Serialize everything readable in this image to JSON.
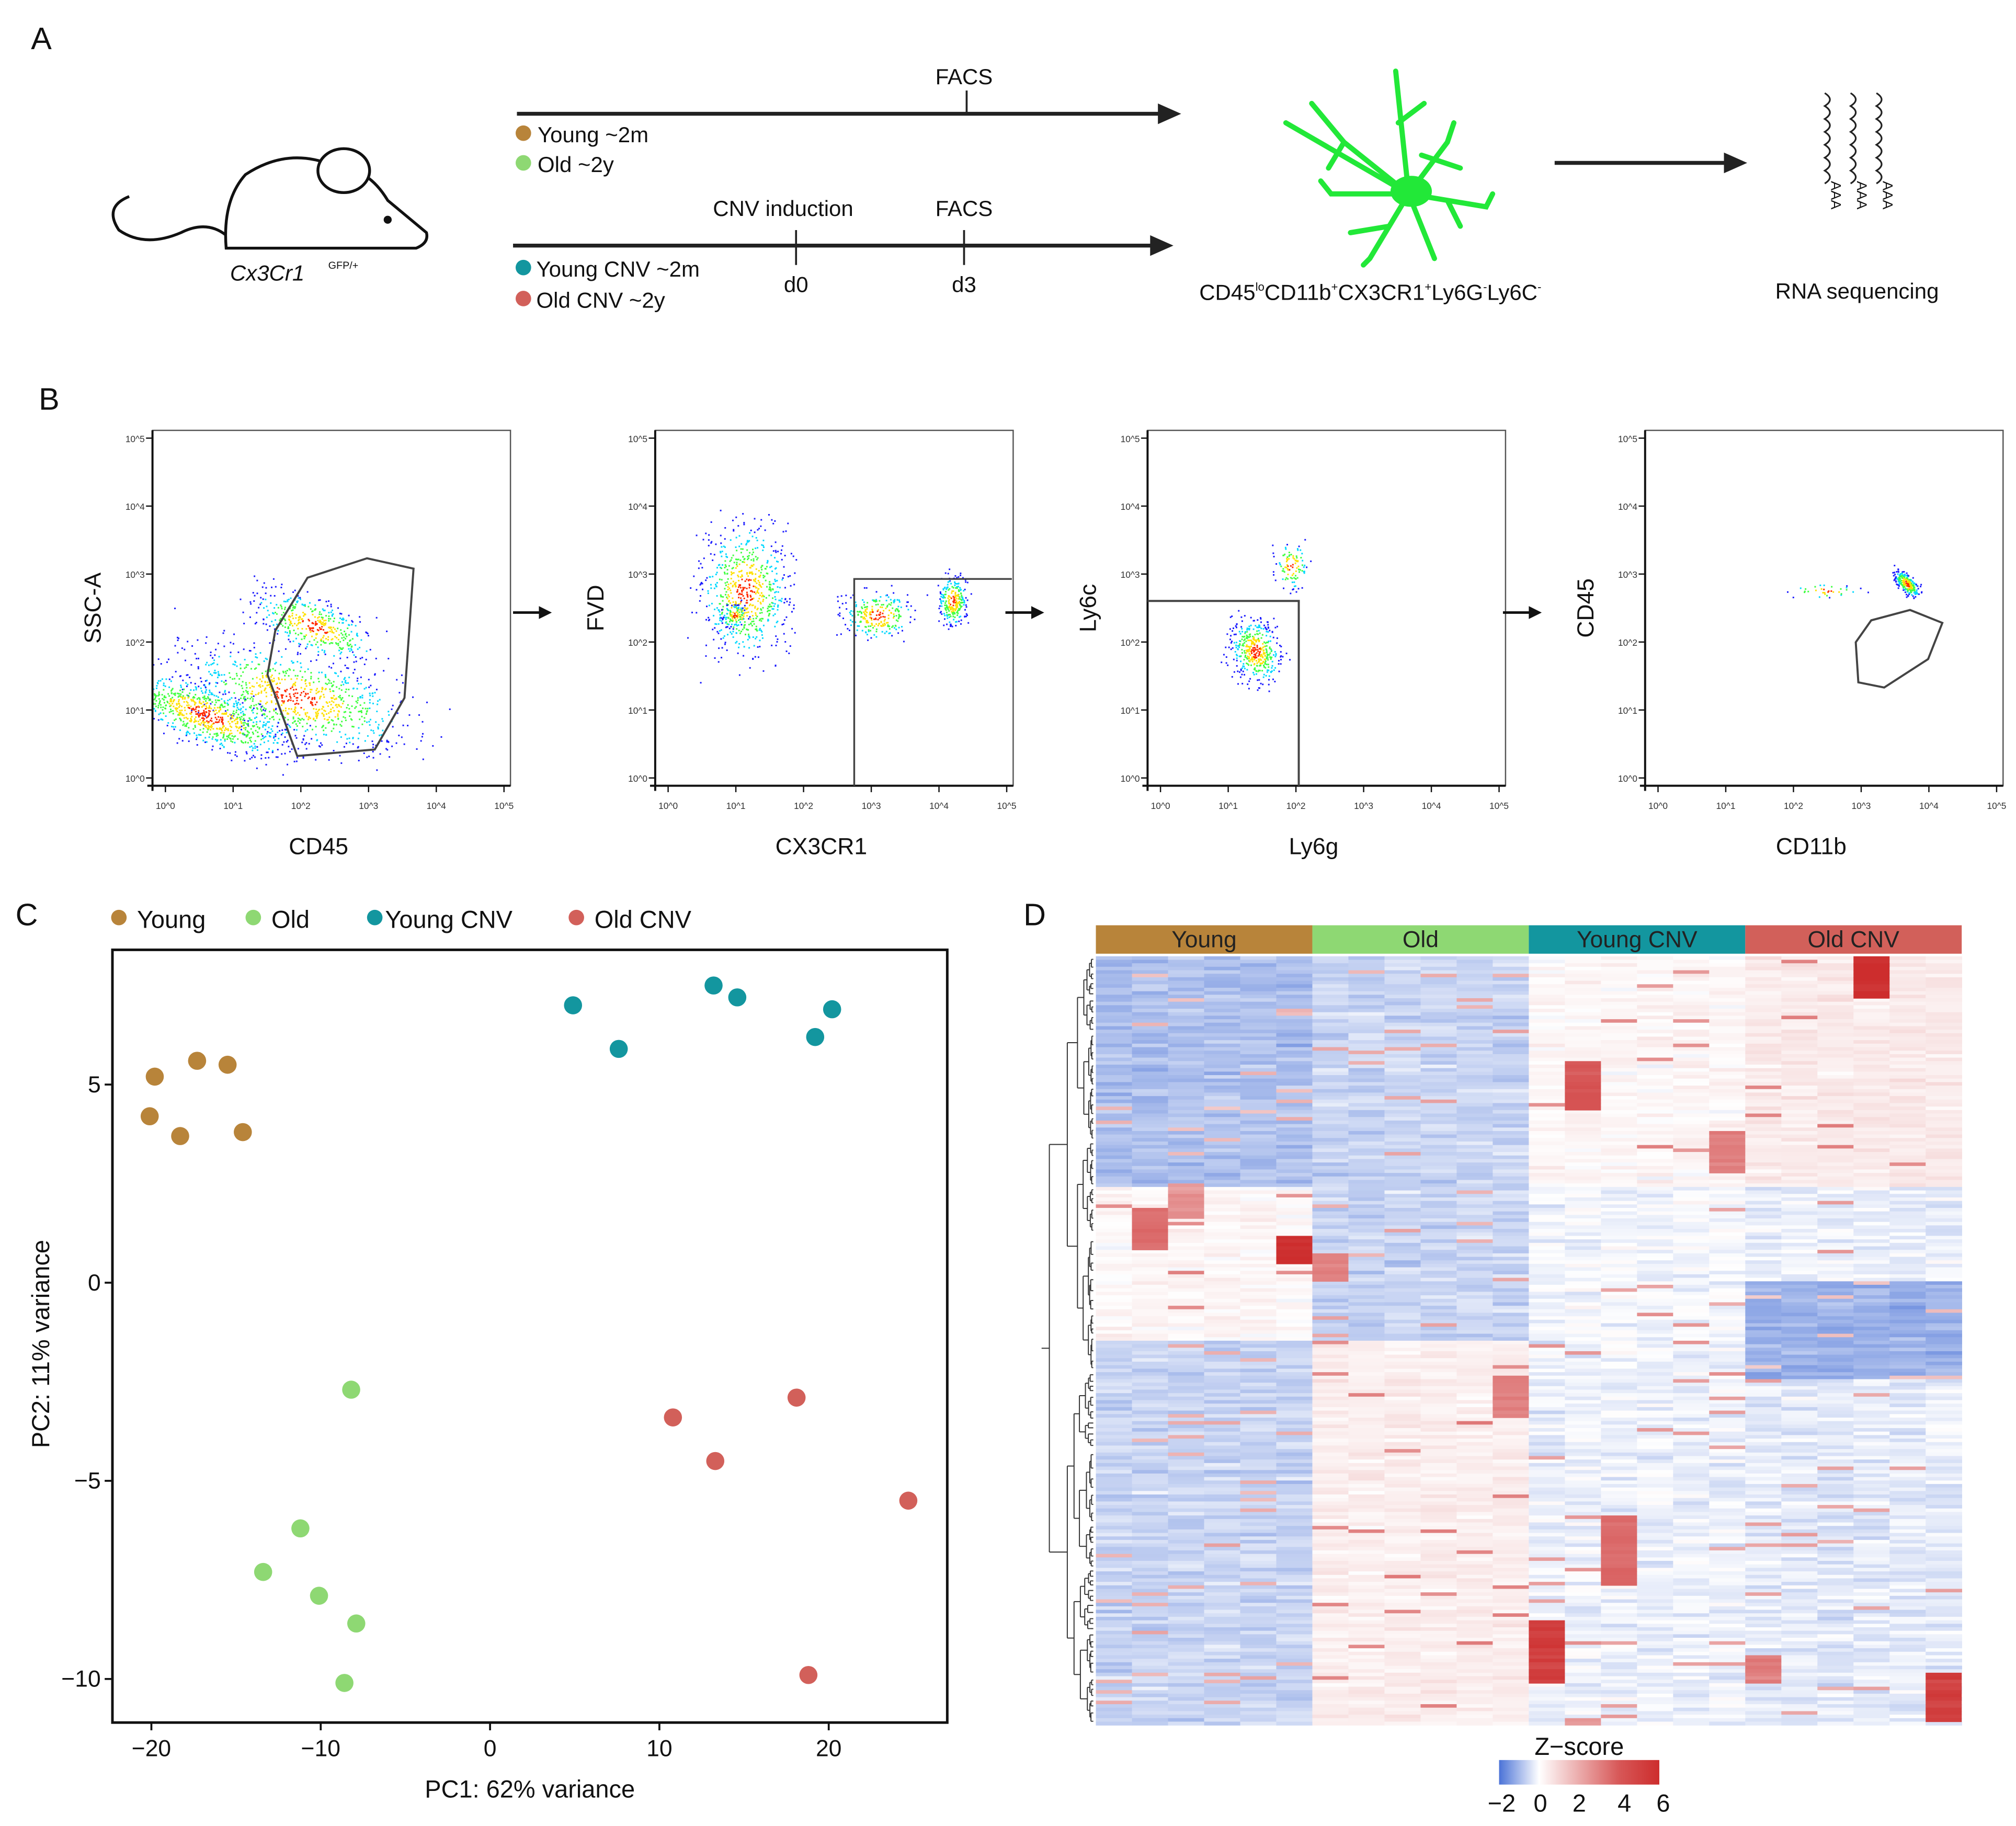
{
  "panel_labels": {
    "a": "A",
    "b": "B",
    "c": "C",
    "d": "D"
  },
  "panel_a": {
    "mouse_label": "Cx3Cr1",
    "mouse_superscript": "GFP/+",
    "timeline1": {
      "tick_label": "FACS",
      "legend": [
        "Young ~2m",
        "Old ~2y"
      ]
    },
    "timeline2": {
      "tick1_label": "CNV induction",
      "tick1_day": "d0",
      "tick2_label": "FACS",
      "tick2_day": "d3",
      "legend": [
        "Young CNV ~2m",
        "Old CNV ~2y"
      ]
    },
    "sort_phenotype": {
      "p1": "CD45",
      "s1": "lo",
      "p2": "CD11b",
      "s2": "+",
      "p3": "CX3CR1",
      "s3": "+",
      "p4": "Ly6G",
      "s4": "-",
      "p5": "Ly6C",
      "s5": "-"
    },
    "rna_label": "RNA sequencing",
    "polyA": "AAA"
  },
  "panel_b": {
    "tick_labels": [
      "10^0",
      "10^1",
      "10^2",
      "10^3",
      "10^4",
      "10^5"
    ],
    "plots": [
      {
        "xlabel": "CD45",
        "ylabel": "SSC-A"
      },
      {
        "xlabel": "CX3CR1",
        "ylabel": "FVD"
      },
      {
        "xlabel": "Ly6g",
        "ylabel": "Ly6c"
      },
      {
        "xlabel": "CD11b",
        "ylabel": "CD45"
      }
    ]
  },
  "colors": {
    "Young": "#b8843a",
    "Old": "#8ed873",
    "Young CNV": "#13969f",
    "Old CNV": "#d2605a"
  },
  "chart_data": [
    {
      "type": "scatter",
      "title": "",
      "xlabel": "PC1: 62% variance",
      "ylabel": "PC2: 11% variance",
      "xlim": [
        -22.3,
        27
      ],
      "ylim": [
        -11.1,
        8.4
      ],
      "xticks": [
        -20,
        -10,
        0,
        10,
        20
      ],
      "yticks": [
        -10,
        -5,
        0,
        5
      ],
      "xtick_labels": [
        "−20",
        "−10",
        "0",
        "10",
        "20"
      ],
      "ytick_labels": [
        "−10",
        "−5",
        "0",
        "5"
      ],
      "legend_position": "top",
      "grid": false,
      "series": [
        {
          "name": "Young",
          "points": [
            [
              -19.8,
              5.2
            ],
            [
              -17.3,
              5.6
            ],
            [
              -15.5,
              5.5
            ],
            [
              -20.1,
              4.2
            ],
            [
              -18.3,
              3.7
            ],
            [
              -14.6,
              3.8
            ]
          ]
        },
        {
          "name": "Old",
          "points": [
            [
              -8.2,
              -2.7
            ],
            [
              -11.2,
              -6.2
            ],
            [
              -13.4,
              -7.3
            ],
            [
              -10.1,
              -7.9
            ],
            [
              -7.9,
              -8.6
            ],
            [
              -8.6,
              -10.1
            ]
          ]
        },
        {
          "name": "Young CNV",
          "points": [
            [
              4.9,
              7.0
            ],
            [
              7.6,
              5.9
            ],
            [
              13.2,
              7.5
            ],
            [
              14.6,
              7.2
            ],
            [
              19.2,
              6.2
            ],
            [
              20.2,
              6.9
            ]
          ]
        },
        {
          "name": "Old CNV",
          "points": [
            [
              10.8,
              -3.4
            ],
            [
              13.3,
              -4.5
            ],
            [
              18.1,
              -2.9
            ],
            [
              24.7,
              -5.5
            ],
            [
              18.8,
              -9.9
            ]
          ]
        }
      ]
    },
    {
      "type": "heatmap",
      "groups": [
        "Young",
        "Old",
        "Young CNV",
        "Old CNV"
      ],
      "columns_per_group": 6,
      "colorbar_title": "Z−score",
      "colorbar_ticks": [
        "−2",
        "0",
        "2",
        "4",
        "6"
      ],
      "colorbar_range": [
        -2,
        6
      ],
      "colorscale": [
        "#4a74d6",
        "#ffffff",
        "#d02c2c"
      ],
      "row_dendrogram": true
    }
  ]
}
